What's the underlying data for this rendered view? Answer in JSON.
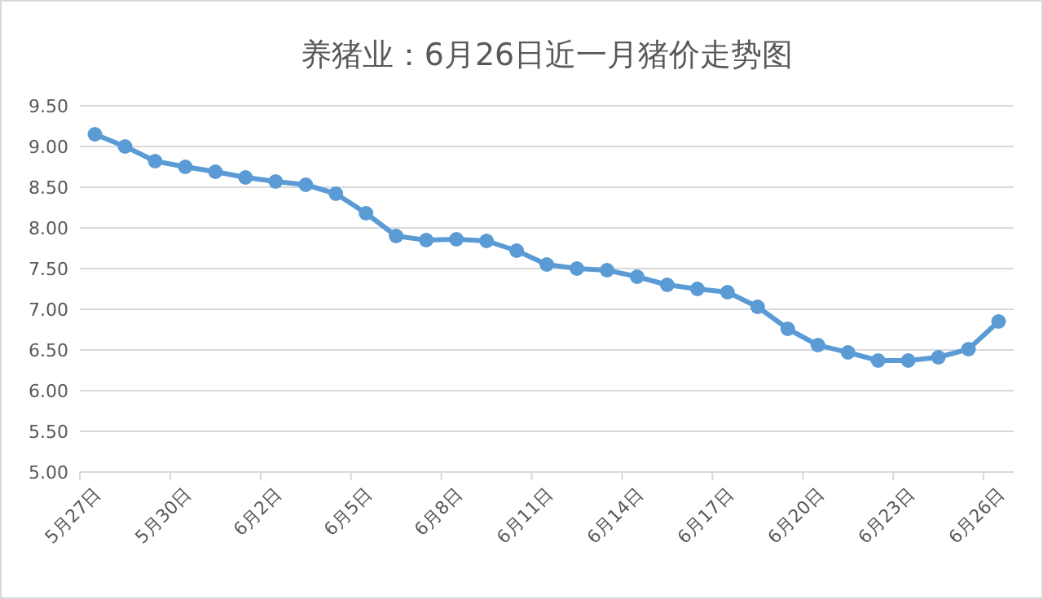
{
  "chart_data": {
    "type": "line",
    "title": "养猪业：6月26日近一月猪价走势图",
    "categories": [
      "5月27日",
      null,
      null,
      "5月30日",
      null,
      null,
      "6月2日",
      null,
      null,
      "6月5日",
      null,
      null,
      "6月8日",
      null,
      null,
      "6月11日",
      null,
      null,
      "6月14日",
      null,
      null,
      "6月17日",
      null,
      null,
      "6月20日",
      null,
      null,
      "6月23日",
      null,
      null,
      "6月26日"
    ],
    "series": [
      {
        "color": "#5b9bd5",
        "values": [
          9.15,
          9.0,
          8.82,
          8.75,
          8.69,
          8.62,
          8.57,
          8.53,
          8.42,
          8.18,
          7.9,
          7.85,
          7.86,
          7.84,
          7.72,
          7.55,
          7.5,
          7.48,
          7.4,
          7.3,
          7.25,
          7.21,
          7.03,
          6.76,
          6.56,
          6.47,
          6.37,
          6.37,
          6.41,
          6.51,
          6.85
        ]
      }
    ],
    "ylim": [
      5,
      9.5
    ],
    "yticks": [
      {
        "value": 5,
        "label": "5.00"
      },
      {
        "value": 5.5,
        "label": "5.50"
      },
      {
        "value": 6,
        "label": "6.00"
      },
      {
        "value": 6.5,
        "label": "6.50"
      },
      {
        "value": 7,
        "label": "7.00"
      },
      {
        "value": 7.5,
        "label": "7.50"
      },
      {
        "value": 8,
        "label": "8.00"
      },
      {
        "value": 8.5,
        "label": "8.50"
      },
      {
        "value": 9,
        "label": "9.00"
      },
      {
        "value": 9.5,
        "label": "9.50"
      }
    ],
    "grid": "y",
    "marker": "circle",
    "line_style": "solid"
  }
}
